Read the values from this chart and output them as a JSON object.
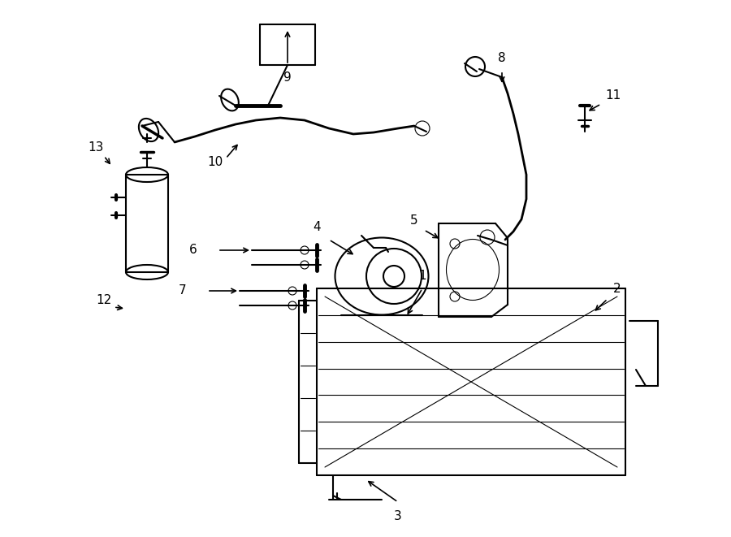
{
  "bg_color": "#ffffff",
  "line_color": "#000000",
  "label_color": "#000000",
  "line_width": 1.5,
  "thin_line": 0.8,
  "figsize": [
    9.0,
    6.61
  ],
  "dpi": 100
}
